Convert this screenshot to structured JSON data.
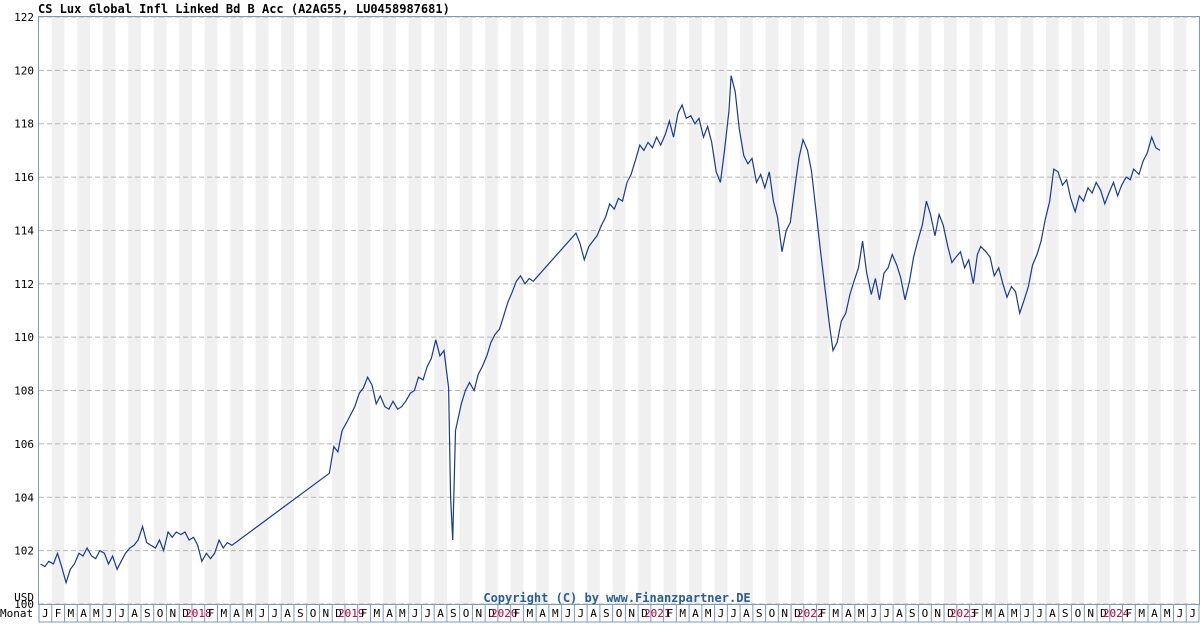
{
  "chart_data": {
    "type": "line",
    "title": "CS Lux Global Infl Linked Bd B Acc (A2AG55, LU0458987681)",
    "ylabel": "USD",
    "xlabel": "Monat",
    "copyright": "Copyright (C) by www.Finanzpartner.DE",
    "ylim": [
      100,
      122
    ],
    "yticks": [
      100,
      102,
      104,
      106,
      108,
      110,
      112,
      114,
      116,
      118,
      120,
      122
    ],
    "grid": true,
    "x_start": "2017-01",
    "x_end": "2024-07",
    "month_labels": [
      "J",
      "F",
      "M",
      "A",
      "M",
      "J",
      "J",
      "A",
      "S",
      "O",
      "N",
      "D",
      "2018",
      "F",
      "M",
      "A",
      "M",
      "J",
      "J",
      "A",
      "S",
      "O",
      "N",
      "D",
      "2019",
      "F",
      "M",
      "A",
      "M",
      "J",
      "J",
      "A",
      "S",
      "O",
      "N",
      "D",
      "2020",
      "F",
      "M",
      "A",
      "M",
      "J",
      "J",
      "A",
      "S",
      "O",
      "N",
      "D",
      "2021",
      "F",
      "M",
      "A",
      "M",
      "J",
      "J",
      "A",
      "S",
      "O",
      "N",
      "D",
      "2022",
      "F",
      "M",
      "A",
      "M",
      "J",
      "J",
      "A",
      "S",
      "O",
      "N",
      "D",
      "2023",
      "F",
      "M",
      "A",
      "M",
      "J",
      "J",
      "A",
      "S",
      "O",
      "N",
      "D",
      "2024",
      "F",
      "M",
      "A",
      "M",
      "J",
      "J"
    ],
    "year_label_indices": [
      12,
      24,
      36,
      48,
      60,
      72,
      84
    ],
    "series": [
      {
        "color": "#1a3a8c",
        "points": [
          [
            "2017-01-05",
            101.5
          ],
          [
            "2017-01-15",
            101.4
          ],
          [
            "2017-01-25",
            101.6
          ],
          [
            "2017-02-05",
            101.5
          ],
          [
            "2017-02-15",
            101.9
          ],
          [
            "2017-02-25",
            101.4
          ],
          [
            "2017-03-05",
            100.8
          ],
          [
            "2017-03-15",
            101.3
          ],
          [
            "2017-03-25",
            101.5
          ],
          [
            "2017-04-05",
            101.9
          ],
          [
            "2017-04-15",
            101.8
          ],
          [
            "2017-04-25",
            102.1
          ],
          [
            "2017-05-05",
            101.8
          ],
          [
            "2017-05-15",
            101.7
          ],
          [
            "2017-05-25",
            102.0
          ],
          [
            "2017-06-05",
            101.9
          ],
          [
            "2017-06-15",
            101.5
          ],
          [
            "2017-06-25",
            101.8
          ],
          [
            "2017-07-05",
            101.3
          ],
          [
            "2017-07-15",
            101.6
          ],
          [
            "2017-07-25",
            101.9
          ],
          [
            "2017-08-05",
            102.1
          ],
          [
            "2017-08-15",
            102.2
          ],
          [
            "2017-08-25",
            102.4
          ],
          [
            "2017-09-05",
            102.9
          ],
          [
            "2017-09-15",
            102.3
          ],
          [
            "2017-09-25",
            102.2
          ],
          [
            "2017-10-05",
            102.1
          ],
          [
            "2017-10-15",
            102.4
          ],
          [
            "2017-10-25",
            102.0
          ],
          [
            "2017-11-05",
            102.7
          ],
          [
            "2017-11-15",
            102.5
          ],
          [
            "2017-11-25",
            102.7
          ],
          [
            "2017-12-05",
            102.6
          ],
          [
            "2017-12-15",
            102.7
          ],
          [
            "2017-12-25",
            102.4
          ],
          [
            "2018-01-05",
            102.5
          ],
          [
            "2018-01-15",
            102.2
          ],
          [
            "2018-01-25",
            101.6
          ],
          [
            "2018-02-05",
            101.9
          ],
          [
            "2018-02-15",
            101.7
          ],
          [
            "2018-02-25",
            101.9
          ],
          [
            "2018-03-05",
            102.4
          ],
          [
            "2018-03-15",
            102.1
          ],
          [
            "2018-03-25",
            102.3
          ],
          [
            "2018-04-05",
            102.2
          ],
          [
            "2018-11-25",
            104.9
          ],
          [
            "2018-12-05",
            105.9
          ],
          [
            "2018-12-15",
            105.7
          ],
          [
            "2018-12-25",
            106.5
          ],
          [
            "2019-01-05",
            106.8
          ],
          [
            "2019-01-15",
            107.1
          ],
          [
            "2019-01-25",
            107.4
          ],
          [
            "2019-02-05",
            107.9
          ],
          [
            "2019-02-15",
            108.1
          ],
          [
            "2019-02-25",
            108.5
          ],
          [
            "2019-03-05",
            108.2
          ],
          [
            "2019-03-15",
            107.5
          ],
          [
            "2019-03-25",
            107.8
          ],
          [
            "2019-04-05",
            107.4
          ],
          [
            "2019-04-15",
            107.3
          ],
          [
            "2019-04-25",
            107.6
          ],
          [
            "2019-05-05",
            107.3
          ],
          [
            "2019-05-15",
            107.4
          ],
          [
            "2019-05-25",
            107.6
          ],
          [
            "2019-06-05",
            107.9
          ],
          [
            "2019-06-15",
            108.0
          ],
          [
            "2019-06-25",
            108.5
          ],
          [
            "2019-07-05",
            108.4
          ],
          [
            "2019-07-15",
            108.9
          ],
          [
            "2019-07-25",
            109.2
          ],
          [
            "2019-08-05",
            109.9
          ],
          [
            "2019-08-15",
            109.3
          ],
          [
            "2019-08-25",
            109.5
          ],
          [
            "2019-09-05",
            108.1
          ],
          [
            "2019-09-10",
            104.0
          ],
          [
            "2019-09-15",
            102.4
          ],
          [
            "2019-09-22",
            106.5
          ],
          [
            "2019-10-05",
            107.5
          ],
          [
            "2019-10-15",
            108.0
          ],
          [
            "2019-10-25",
            108.3
          ],
          [
            "2019-11-05",
            108.0
          ],
          [
            "2019-11-15",
            108.6
          ],
          [
            "2019-11-25",
            108.9
          ],
          [
            "2019-12-05",
            109.3
          ],
          [
            "2019-12-15",
            109.8
          ],
          [
            "2019-12-25",
            110.1
          ],
          [
            "2020-01-05",
            110.3
          ],
          [
            "2020-01-15",
            110.8
          ],
          [
            "2020-01-25",
            111.3
          ],
          [
            "2020-02-05",
            111.7
          ],
          [
            "2020-02-15",
            112.1
          ],
          [
            "2020-02-25",
            112.3
          ],
          [
            "2020-03-05",
            112.0
          ],
          [
            "2020-03-15",
            112.2
          ],
          [
            "2020-03-25",
            112.1
          ],
          [
            "2020-07-05",
            113.9
          ],
          [
            "2020-07-15",
            113.5
          ],
          [
            "2020-07-25",
            112.9
          ],
          [
            "2020-08-05",
            113.4
          ],
          [
            "2020-08-15",
            113.6
          ],
          [
            "2020-08-25",
            113.8
          ],
          [
            "2020-09-05",
            114.2
          ],
          [
            "2020-09-15",
            114.5
          ],
          [
            "2020-09-25",
            115.0
          ],
          [
            "2020-10-05",
            114.8
          ],
          [
            "2020-10-15",
            115.2
          ],
          [
            "2020-10-25",
            115.1
          ],
          [
            "2020-11-05",
            115.8
          ],
          [
            "2020-11-15",
            116.1
          ],
          [
            "2020-11-25",
            116.6
          ],
          [
            "2020-12-05",
            117.2
          ],
          [
            "2020-12-15",
            117.0
          ],
          [
            "2020-12-25",
            117.3
          ],
          [
            "2021-01-05",
            117.1
          ],
          [
            "2021-01-15",
            117.5
          ],
          [
            "2021-01-25",
            117.2
          ],
          [
            "2021-02-05",
            117.6
          ],
          [
            "2021-02-15",
            118.1
          ],
          [
            "2021-02-25",
            117.5
          ],
          [
            "2021-03-05",
            118.4
          ],
          [
            "2021-03-15",
            118.7
          ],
          [
            "2021-03-25",
            118.2
          ],
          [
            "2021-04-05",
            118.3
          ],
          [
            "2021-04-15",
            118.0
          ],
          [
            "2021-04-25",
            118.2
          ],
          [
            "2021-05-05",
            117.5
          ],
          [
            "2021-05-15",
            117.9
          ],
          [
            "2021-05-25",
            117.3
          ],
          [
            "2021-06-05",
            116.2
          ],
          [
            "2021-06-15",
            115.8
          ],
          [
            "2021-06-25",
            117.0
          ],
          [
            "2021-07-05",
            118.5
          ],
          [
            "2021-07-10",
            119.8
          ],
          [
            "2021-07-20",
            119.2
          ],
          [
            "2021-07-30",
            117.8
          ],
          [
            "2021-08-10",
            116.8
          ],
          [
            "2021-08-20",
            116.5
          ],
          [
            "2021-08-30",
            116.7
          ],
          [
            "2021-09-10",
            115.8
          ],
          [
            "2021-09-20",
            116.1
          ],
          [
            "2021-09-30",
            115.6
          ],
          [
            "2021-10-10",
            116.2
          ],
          [
            "2021-10-20",
            115.1
          ],
          [
            "2021-10-30",
            114.5
          ],
          [
            "2021-11-10",
            113.2
          ],
          [
            "2021-11-20",
            114.0
          ],
          [
            "2021-11-30",
            114.3
          ],
          [
            "2021-12-10",
            115.6
          ],
          [
            "2021-12-20",
            116.7
          ],
          [
            "2021-12-30",
            117.4
          ],
          [
            "2022-01-10",
            117.0
          ],
          [
            "2022-01-20",
            116.2
          ],
          [
            "2022-01-30",
            114.8
          ],
          [
            "2022-02-10",
            113.3
          ],
          [
            "2022-02-20",
            112.0
          ],
          [
            "2022-03-01",
            110.5
          ],
          [
            "2022-03-10",
            109.5
          ],
          [
            "2022-03-20",
            109.8
          ],
          [
            "2022-03-30",
            110.6
          ],
          [
            "2022-04-10",
            110.9
          ],
          [
            "2022-04-20",
            111.6
          ],
          [
            "2022-04-30",
            112.1
          ],
          [
            "2022-05-10",
            112.6
          ],
          [
            "2022-05-20",
            113.6
          ],
          [
            "2022-05-30",
            112.4
          ],
          [
            "2022-06-10",
            111.6
          ],
          [
            "2022-06-20",
            112.2
          ],
          [
            "2022-06-30",
            111.4
          ],
          [
            "2022-07-10",
            112.4
          ],
          [
            "2022-07-20",
            112.6
          ],
          [
            "2022-07-30",
            113.1
          ],
          [
            "2022-08-10",
            112.7
          ],
          [
            "2022-08-20",
            112.2
          ],
          [
            "2022-08-30",
            111.4
          ],
          [
            "2022-09-10",
            112.1
          ],
          [
            "2022-09-20",
            113.0
          ],
          [
            "2022-09-30",
            113.6
          ],
          [
            "2022-10-10",
            114.2
          ],
          [
            "2022-10-20",
            115.1
          ],
          [
            "2022-10-30",
            114.6
          ],
          [
            "2022-11-10",
            113.8
          ],
          [
            "2022-11-20",
            114.6
          ],
          [
            "2022-11-30",
            114.2
          ],
          [
            "2022-12-10",
            113.4
          ],
          [
            "2022-12-20",
            112.8
          ],
          [
            "2022-12-30",
            113.0
          ],
          [
            "2023-01-10",
            113.2
          ],
          [
            "2023-01-20",
            112.6
          ],
          [
            "2023-01-30",
            112.9
          ],
          [
            "2023-02-10",
            112.0
          ],
          [
            "2023-02-20",
            113.1
          ],
          [
            "2023-02-28",
            113.4
          ],
          [
            "2023-03-10",
            113.2
          ],
          [
            "2023-03-20",
            113.0
          ],
          [
            "2023-03-30",
            112.3
          ],
          [
            "2023-04-10",
            112.6
          ],
          [
            "2023-04-20",
            112.0
          ],
          [
            "2023-04-30",
            111.5
          ],
          [
            "2023-05-10",
            111.9
          ],
          [
            "2023-05-20",
            111.7
          ],
          [
            "2023-05-30",
            110.9
          ],
          [
            "2023-06-10",
            111.4
          ],
          [
            "2023-06-20",
            111.9
          ],
          [
            "2023-06-30",
            112.7
          ],
          [
            "2023-07-10",
            113.1
          ],
          [
            "2023-07-20",
            113.6
          ],
          [
            "2023-07-30",
            114.4
          ],
          [
            "2023-08-10",
            115.1
          ],
          [
            "2023-08-20",
            116.3
          ],
          [
            "2023-08-30",
            116.2
          ],
          [
            "2023-09-10",
            115.7
          ],
          [
            "2023-09-20",
            115.9
          ],
          [
            "2023-09-30",
            115.2
          ],
          [
            "2023-10-10",
            114.7
          ],
          [
            "2023-10-20",
            115.3
          ],
          [
            "2023-10-30",
            115.1
          ],
          [
            "2023-11-10",
            115.6
          ],
          [
            "2023-11-20",
            115.4
          ],
          [
            "2023-11-30",
            115.8
          ],
          [
            "2023-12-10",
            115.5
          ],
          [
            "2023-12-20",
            115.0
          ],
          [
            "2023-12-30",
            115.4
          ],
          [
            "2024-01-10",
            115.8
          ],
          [
            "2024-01-20",
            115.3
          ],
          [
            "2024-01-30",
            115.7
          ],
          [
            "2024-02-10",
            116.0
          ],
          [
            "2024-02-20",
            115.9
          ],
          [
            "2024-02-28",
            116.3
          ],
          [
            "2024-03-10",
            116.1
          ],
          [
            "2024-03-20",
            116.6
          ],
          [
            "2024-03-30",
            116.9
          ],
          [
            "2024-04-10",
            117.5
          ],
          [
            "2024-04-20",
            117.1
          ],
          [
            "2024-04-30",
            117.0
          ]
        ]
      }
    ]
  }
}
